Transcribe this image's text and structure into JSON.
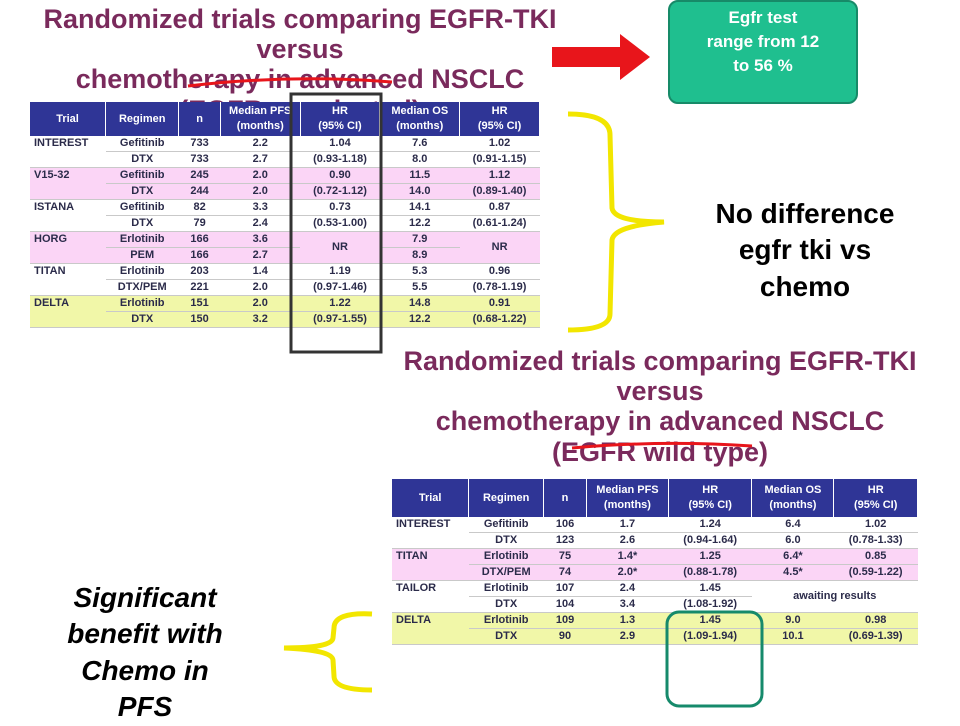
{
  "top": {
    "title_lines": [
      "Randomized trials comparing EGFR-TKI versus",
      "chemotherapy in advanced NSCLC",
      "(EGFR unselected)"
    ],
    "headers": [
      "Trial",
      "Regimen",
      "n",
      "Median PFS\n(months)",
      "HR\n(95% CI)",
      "Median OS\n(months)",
      "HR\n(95% CI)"
    ],
    "groups": [
      {
        "trial": "INTEREST",
        "row_color": "white",
        "rows": [
          [
            "Gefitinib",
            "733",
            "2.2",
            "7.6"
          ],
          [
            "DTX",
            "733",
            "2.7",
            "8.0"
          ]
        ],
        "pfs_hr": "1.04",
        "pfs_ci": "(0.93-1.18)",
        "os_hr": "1.02",
        "os_ci": "(0.91-1.15)"
      },
      {
        "trial": "V15-32",
        "row_color": "pink",
        "rows": [
          [
            "Gefitinib",
            "245",
            "2.0",
            "11.5"
          ],
          [
            "DTX",
            "244",
            "2.0",
            "14.0"
          ]
        ],
        "pfs_hr": "0.90",
        "pfs_ci": "(0.72-1.12)",
        "os_hr": "1.12",
        "os_ci": "(0.89-1.40)"
      },
      {
        "trial": "ISTANA",
        "row_color": "white",
        "rows": [
          [
            "Gefitinib",
            "82",
            "3.3",
            "14.1"
          ],
          [
            "DTX",
            "79",
            "2.4",
            "12.2"
          ]
        ],
        "pfs_hr": "0.73",
        "pfs_ci": "(0.53-1.00)",
        "os_hr": "0.87",
        "os_ci": "(0.61-1.24)"
      },
      {
        "trial": "HORG",
        "row_color": "pink",
        "rows": [
          [
            "Erlotinib",
            "166",
            "3.6",
            "7.9"
          ],
          [
            "PEM",
            "166",
            "2.7",
            "8.9"
          ]
        ],
        "pfs_single": "NR",
        "os_single": "NR"
      },
      {
        "trial": "TITAN",
        "row_color": "white",
        "rows": [
          [
            "Erlotinib",
            "203",
            "1.4",
            "5.3"
          ],
          [
            "DTX/PEM",
            "221",
            "2.0",
            "5.5"
          ]
        ],
        "pfs_hr": "1.19",
        "pfs_ci": "(0.97-1.46)",
        "os_hr": "0.96",
        "os_ci": "(0.78-1.19)"
      },
      {
        "trial": "DELTA",
        "row_color": "yellow",
        "rows": [
          [
            "Erlotinib",
            "151",
            "2.0",
            "14.8"
          ],
          [
            "DTX",
            "150",
            "3.2",
            "12.2"
          ]
        ],
        "pfs_hr": "1.22",
        "pfs_ci": "(0.97-1.55)",
        "os_hr": "0.91",
        "os_ci": "(0.68-1.22)"
      }
    ]
  },
  "bottom": {
    "title_lines": [
      "Randomized trials comparing EGFR-TKI versus",
      "chemotherapy in advanced NSCLC",
      "(EGFR wild type)"
    ],
    "headers": [
      "Trial",
      "Regimen",
      "n",
      "Median PFS\n(months)",
      "HR\n(95% CI)",
      "Median OS\n(months)",
      "HR\n(95% CI)"
    ],
    "groups": [
      {
        "trial": "INTEREST",
        "row_color": "white",
        "rows": [
          [
            "Gefitinib",
            "106",
            "1.7",
            "6.4"
          ],
          [
            "DTX",
            "123",
            "2.6",
            "6.0"
          ]
        ],
        "pfs_hr": "1.24",
        "pfs_ci": "(0.94-1.64)",
        "os_hr": "1.02",
        "os_ci": "(0.78-1.33)"
      },
      {
        "trial": "TITAN",
        "row_color": "pink",
        "rows": [
          [
            "Erlotinib",
            "75",
            "1.4*",
            "6.4*"
          ],
          [
            "DTX/PEM",
            "74",
            "2.0*",
            "4.5*"
          ]
        ],
        "pfs_hr": "1.25",
        "pfs_ci": "(0.88-1.78)",
        "os_hr": "0.85",
        "os_ci": "(0.59-1.22)"
      },
      {
        "trial": "TAILOR",
        "row_color": "white",
        "rows": [
          [
            "Erlotinib",
            "107",
            "2.4",
            ""
          ],
          [
            "DTX",
            "104",
            "3.4",
            ""
          ]
        ],
        "pfs_hr": "1.45",
        "pfs_ci": "(1.08-1.92)",
        "os_text": "awaiting results"
      },
      {
        "trial": "DELTA",
        "row_color": "yellow",
        "rows": [
          [
            "Erlotinib",
            "109",
            "1.3",
            "9.0"
          ],
          [
            "DTX",
            "90",
            "2.9",
            "10.1"
          ]
        ],
        "pfs_hr": "1.45",
        "pfs_ci": "(1.09-1.94)",
        "os_hr": "0.98",
        "os_ci": "(0.69-1.39)"
      }
    ]
  },
  "note_box": {
    "text": "Egfr   test\nrange from 12\nto 56 %",
    "color": "#1fbf8f"
  },
  "callout_top": {
    "text": "No difference\negfr tki vs\nchemo"
  },
  "callout_bottom": {
    "text": "Significant\nbenefit with\nChemo in\nPFS"
  },
  "colors": {
    "title": "#7a2a5c",
    "header_bg": "#2f3596",
    "pink_row": "#fbd5f6",
    "yellow_row": "#f1f7a8",
    "arrow": "#e8151b",
    "bracket": "#f2e600",
    "box_dark": "#333333",
    "box_teal": "#168a6b",
    "underline": "#e8151b"
  }
}
